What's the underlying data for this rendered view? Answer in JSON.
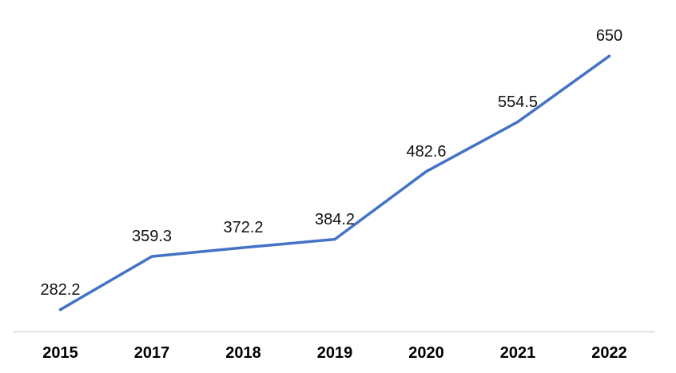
{
  "chart_data": {
    "type": "line",
    "title": "",
    "categories": [
      "2015",
      "2017",
      "2018",
      "2019",
      "2020",
      "2021",
      "2022"
    ],
    "values": [
      282.2,
      359.3,
      372.2,
      384.2,
      482.6,
      554.5,
      650
    ],
    "data_labels": [
      "282.2",
      "359.3",
      "372.2",
      "384.2",
      "482.6",
      "554.5",
      "650"
    ],
    "xlabel": "",
    "ylabel": "",
    "ylim": [
      250,
      700
    ],
    "grid": false,
    "legend": false,
    "line_color": "#4472C4",
    "axis_line_color": "#D9D9D9",
    "label_color": "#111111",
    "tick_label_color": "#000000"
  }
}
